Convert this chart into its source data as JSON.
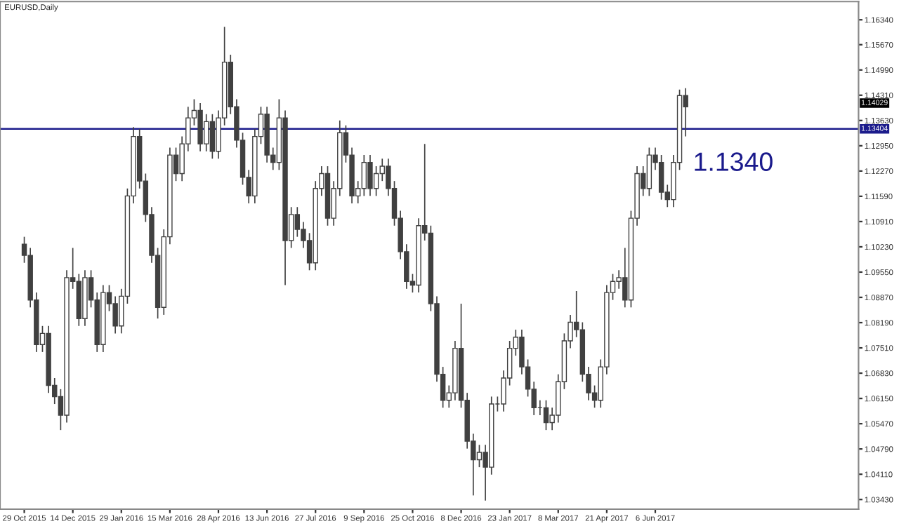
{
  "chart_data": {
    "type": "candlestick",
    "title": "EURUSD,Daily",
    "categories": [
      "29 Oct 2015",
      null,
      null,
      null,
      null,
      null,
      null,
      null,
      "14 Dec 2015",
      null,
      null,
      null,
      null,
      null,
      null,
      null,
      "29 Jan 2016",
      null,
      null,
      null,
      null,
      null,
      null,
      null,
      "15 Mar 2016",
      null,
      null,
      null,
      null,
      null,
      null,
      null,
      "28 Apr 2016",
      null,
      null,
      null,
      null,
      null,
      null,
      null,
      "13 Jun 2016",
      null,
      null,
      null,
      null,
      null,
      null,
      null,
      "27 Jul 2016",
      null,
      null,
      null,
      null,
      null,
      null,
      null,
      "9 Sep 2016",
      null,
      null,
      null,
      null,
      null,
      null,
      null,
      "25 Oct 2016",
      null,
      null,
      null,
      null,
      null,
      null,
      null,
      "8 Dec 2016",
      null,
      null,
      null,
      null,
      null,
      null,
      null,
      "23 Jan 2017",
      null,
      null,
      null,
      null,
      null,
      null,
      null,
      "8 Mar 2017",
      null,
      null,
      null,
      null,
      null,
      null,
      null,
      "21 Apr 2017",
      null,
      null,
      null,
      null,
      null,
      null,
      null,
      "6 Jun 2017",
      null,
      null,
      null,
      null,
      null,
      null,
      null,
      null,
      null,
      null,
      null,
      null,
      null,
      null,
      null,
      null,
      null,
      null,
      null,
      null,
      null,
      null,
      null,
      null,
      null,
      null,
      null,
      null,
      null,
      null,
      null,
      null,
      null
    ],
    "ohlc": [
      [
        1.103,
        1.105,
        1.098,
        1.1
      ],
      [
        1.1,
        1.102,
        1.086,
        1.088
      ],
      [
        1.088,
        1.09,
        1.074,
        1.076
      ],
      [
        1.076,
        1.081,
        1.074,
        1.079
      ],
      [
        1.079,
        1.081,
        1.063,
        1.065
      ],
      [
        1.065,
        1.067,
        1.06,
        1.062
      ],
      [
        1.062,
        1.064,
        1.053,
        1.057
      ],
      [
        1.057,
        1.096,
        1.055,
        1.094
      ],
      [
        1.094,
        1.102,
        1.091,
        1.093
      ],
      [
        1.093,
        1.095,
        1.081,
        1.083
      ],
      [
        1.083,
        1.096,
        1.081,
        1.094
      ],
      [
        1.094,
        1.096,
        1.086,
        1.088
      ],
      [
        1.088,
        1.09,
        1.074,
        1.076
      ],
      [
        1.076,
        1.092,
        1.074,
        1.09
      ],
      [
        1.09,
        1.092,
        1.085,
        1.087
      ],
      [
        1.087,
        1.089,
        1.079,
        1.081
      ],
      [
        1.081,
        1.091,
        1.079,
        1.089
      ],
      [
        1.089,
        1.118,
        1.087,
        1.116
      ],
      [
        1.116,
        1.1345,
        1.114,
        1.132
      ],
      [
        1.132,
        1.134,
        1.118,
        1.12
      ],
      [
        1.12,
        1.122,
        1.109,
        1.111
      ],
      [
        1.111,
        1.113,
        1.098,
        1.1
      ],
      [
        1.1,
        1.102,
        1.083,
        1.086
      ],
      [
        1.086,
        1.107,
        1.084,
        1.105
      ],
      [
        1.105,
        1.129,
        1.103,
        1.127
      ],
      [
        1.127,
        1.129,
        1.12,
        1.122
      ],
      [
        1.122,
        1.132,
        1.12,
        1.13
      ],
      [
        1.13,
        1.14,
        1.128,
        1.137
      ],
      [
        1.137,
        1.142,
        1.135,
        1.139
      ],
      [
        1.139,
        1.141,
        1.128,
        1.13
      ],
      [
        1.13,
        1.138,
        1.128,
        1.136
      ],
      [
        1.136,
        1.138,
        1.126,
        1.128
      ],
      [
        1.128,
        1.139,
        1.126,
        1.137
      ],
      [
        1.137,
        1.1615,
        1.135,
        1.152
      ],
      [
        1.152,
        1.154,
        1.138,
        1.14
      ],
      [
        1.14,
        1.142,
        1.129,
        1.131
      ],
      [
        1.131,
        1.133,
        1.119,
        1.121
      ],
      [
        1.121,
        1.123,
        1.114,
        1.116
      ],
      [
        1.116,
        1.134,
        1.114,
        1.132
      ],
      [
        1.132,
        1.14,
        1.13,
        1.138
      ],
      [
        1.138,
        1.14,
        1.125,
        1.127
      ],
      [
        1.127,
        1.129,
        1.123,
        1.125
      ],
      [
        1.125,
        1.142,
        1.123,
        1.137
      ],
      [
        1.137,
        1.139,
        1.092,
        1.104
      ],
      [
        1.104,
        1.113,
        1.102,
        1.111
      ],
      [
        1.111,
        1.113,
        1.105,
        1.107
      ],
      [
        1.107,
        1.109,
        1.102,
        1.104
      ],
      [
        1.104,
        1.106,
        1.096,
        1.098
      ],
      [
        1.098,
        1.12,
        1.096,
        1.118
      ],
      [
        1.118,
        1.124,
        1.116,
        1.122
      ],
      [
        1.122,
        1.124,
        1.108,
        1.11
      ],
      [
        1.11,
        1.12,
        1.108,
        1.118
      ],
      [
        1.118,
        1.1363,
        1.116,
        1.133
      ],
      [
        1.133,
        1.135,
        1.125,
        1.127
      ],
      [
        1.127,
        1.129,
        1.114,
        1.116
      ],
      [
        1.116,
        1.12,
        1.114,
        1.118
      ],
      [
        1.118,
        1.127,
        1.116,
        1.125
      ],
      [
        1.125,
        1.127,
        1.116,
        1.118
      ],
      [
        1.118,
        1.124,
        1.116,
        1.122
      ],
      [
        1.122,
        1.126,
        1.12,
        1.124
      ],
      [
        1.124,
        1.126,
        1.116,
        1.118
      ],
      [
        1.118,
        1.12,
        1.108,
        1.11
      ],
      [
        1.11,
        1.112,
        1.099,
        1.101
      ],
      [
        1.101,
        1.103,
        1.091,
        1.093
      ],
      [
        1.093,
        1.095,
        1.09,
        1.092
      ],
      [
        1.092,
        1.11,
        1.09,
        1.108
      ],
      [
        1.108,
        1.13,
        1.104,
        1.106
      ],
      [
        1.106,
        1.108,
        1.085,
        1.087
      ],
      [
        1.087,
        1.089,
        1.066,
        1.068
      ],
      [
        1.068,
        1.07,
        1.059,
        1.061
      ],
      [
        1.061,
        1.065,
        1.059,
        1.063
      ],
      [
        1.063,
        1.077,
        1.061,
        1.075
      ],
      [
        1.075,
        1.087,
        1.059,
        1.061
      ],
      [
        1.061,
        1.063,
        1.048,
        1.05
      ],
      [
        1.05,
        1.052,
        1.0354,
        1.045
      ],
      [
        1.045,
        1.049,
        1.043,
        1.047
      ],
      [
        1.047,
        1.049,
        1.034,
        1.043
      ],
      [
        1.043,
        1.062,
        1.041,
        1.06
      ],
      [
        1.06,
        1.062,
        1.058,
        1.06
      ],
      [
        1.06,
        1.069,
        1.058,
        1.067
      ],
      [
        1.067,
        1.077,
        1.065,
        1.075
      ],
      [
        1.075,
        1.08,
        1.073,
        1.078
      ],
      [
        1.078,
        1.08,
        1.068,
        1.07
      ],
      [
        1.07,
        1.072,
        1.062,
        1.064
      ],
      [
        1.064,
        1.066,
        1.057,
        1.059
      ],
      [
        1.059,
        1.061,
        1.057,
        1.059
      ],
      [
        1.059,
        1.061,
        1.053,
        1.055
      ],
      [
        1.055,
        1.059,
        1.053,
        1.057
      ],
      [
        1.057,
        1.068,
        1.055,
        1.066
      ],
      [
        1.066,
        1.079,
        1.064,
        1.077
      ],
      [
        1.077,
        1.084,
        1.075,
        1.082
      ],
      [
        1.082,
        1.0904,
        1.078,
        1.08
      ],
      [
        1.08,
        1.082,
        1.066,
        1.068
      ],
      [
        1.068,
        1.07,
        1.061,
        1.063
      ],
      [
        1.063,
        1.065,
        1.059,
        1.061
      ],
      [
        1.061,
        1.072,
        1.059,
        1.07
      ],
      [
        1.07,
        1.092,
        1.068,
        1.09
      ],
      [
        1.09,
        1.095,
        1.088,
        1.093
      ],
      [
        1.093,
        1.096,
        1.091,
        1.094
      ],
      [
        1.094,
        1.102,
        1.086,
        1.088
      ],
      [
        1.088,
        1.112,
        1.086,
        1.11
      ],
      [
        1.11,
        1.124,
        1.108,
        1.122
      ],
      [
        1.122,
        1.124,
        1.116,
        1.118
      ],
      [
        1.118,
        1.129,
        1.116,
        1.127
      ],
      [
        1.127,
        1.129,
        1.123,
        1.125
      ],
      [
        1.125,
        1.127,
        1.115,
        1.117
      ],
      [
        1.117,
        1.119,
        1.113,
        1.115
      ],
      [
        1.115,
        1.127,
        1.113,
        1.125
      ],
      [
        1.125,
        1.1446,
        1.123,
        1.143
      ],
      [
        1.143,
        1.145,
        1.132,
        1.14
      ],
      null,
      null,
      null,
      null,
      null,
      null,
      null,
      null,
      null,
      null,
      null,
      null,
      null,
      null,
      null,
      null,
      null,
      null,
      null,
      null,
      null,
      null,
      null,
      null,
      null,
      null,
      null,
      null
    ],
    "color": "#404040",
    "ylim": [
      1.0317,
      1.1683
    ],
    "yticks": [
      {
        "value": 1.0343,
        "label": "1.03430"
      },
      {
        "value": 1.0411,
        "label": "1.04110"
      },
      {
        "value": 1.0479,
        "label": "1.04790"
      },
      {
        "value": 1.0547,
        "label": "1.05470"
      },
      {
        "value": 1.0615,
        "label": "1.06150"
      },
      {
        "value": 1.0683,
        "label": "1.06830"
      },
      {
        "value": 1.0751,
        "label": "1.07510"
      },
      {
        "value": 1.0819,
        "label": "1.08190"
      },
      {
        "value": 1.0887,
        "label": "1.08870"
      },
      {
        "value": 1.0955,
        "label": "1.09550"
      },
      {
        "value": 1.1023,
        "label": "1.10230"
      },
      {
        "value": 1.1091,
        "label": "1.10910"
      },
      {
        "value": 1.1159,
        "label": "1.11590"
      },
      {
        "value": 1.1227,
        "label": "1.12270"
      },
      {
        "value": 1.1295,
        "label": "1.12950"
      },
      {
        "value": 1.1363,
        "label": "1.13630"
      },
      {
        "value": 1.1431,
        "label": "1.14310"
      },
      {
        "value": 1.1499,
        "label": "1.14990"
      },
      {
        "value": 1.1567,
        "label": "1.15670"
      },
      {
        "value": 1.1634,
        "label": "1.16340"
      }
    ],
    "ref_lines": [
      {
        "axis": "y",
        "value": 1.13404,
        "label": "1.13404",
        "color": "#1c1c8c"
      }
    ],
    "annotations": [
      "1.14029",
      "1.1340"
    ],
    "grid": false,
    "legend": false
  }
}
